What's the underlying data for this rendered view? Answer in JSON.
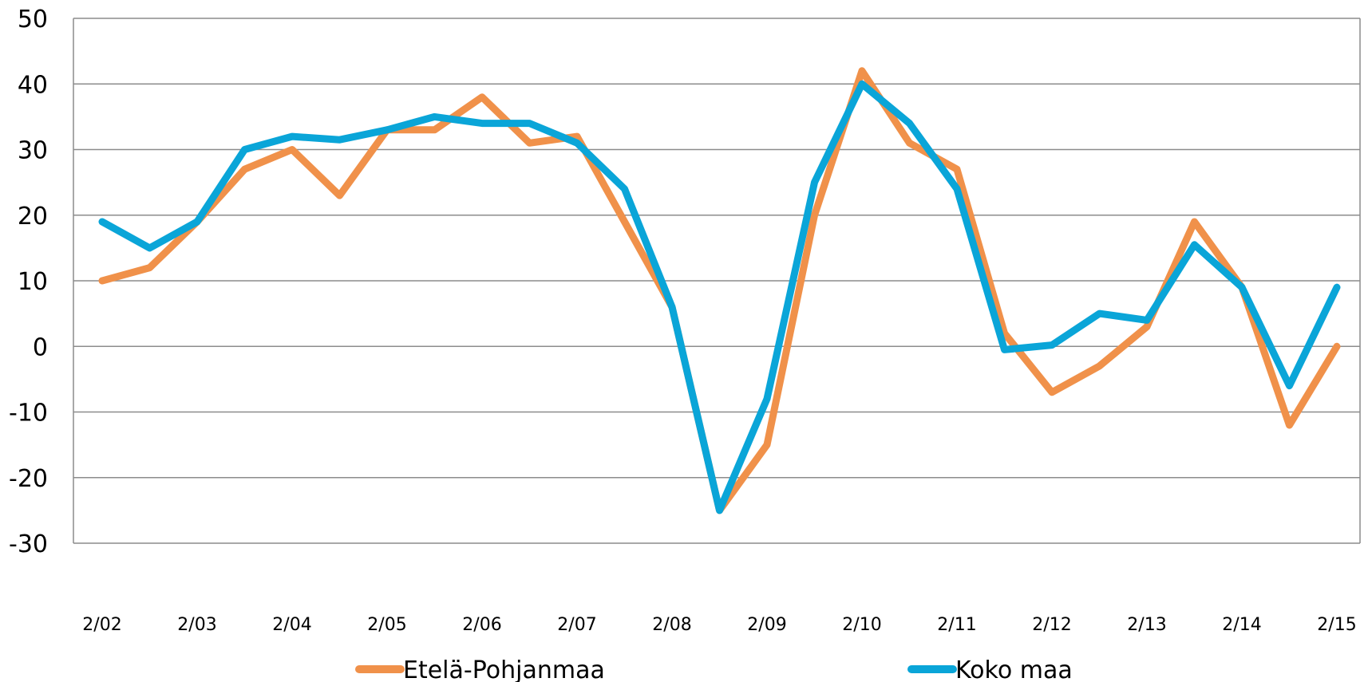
{
  "chart_data": {
    "type": "line",
    "title": "",
    "xlabel": "",
    "ylabel": "",
    "ylim": [
      -30,
      50
    ],
    "y_ticks": [
      50,
      40,
      30,
      20,
      10,
      0,
      -10,
      -20,
      -30
    ],
    "y_tick_labels": [
      "50",
      "40",
      "30",
      "20",
      "10",
      "0",
      "-10",
      "-20",
      "-30"
    ],
    "x_tick_labels": [
      "2/02",
      "2/03",
      "2/04",
      "2/05",
      "2/06",
      "2/07",
      "2/08",
      "2/09",
      "2/10",
      "2/11",
      "2/12",
      "2/13",
      "2/14",
      "2/15"
    ],
    "grid": true,
    "legend_position": "bottom",
    "series": [
      {
        "name": "Etelä-Pohjanmaa",
        "color": "#F0914A",
        "values": [
          10,
          12,
          19,
          27,
          30,
          23,
          33,
          33,
          38,
          31,
          32,
          19,
          6,
          -25,
          -15,
          20,
          42,
          31,
          27,
          2,
          -7,
          -3,
          3,
          19,
          9,
          -12,
          0
        ]
      },
      {
        "name": "Koko maa",
        "color": "#0AA5D8",
        "values": [
          19,
          15,
          19,
          30,
          32,
          31.5,
          33,
          35,
          34,
          34,
          31,
          24,
          6,
          -25,
          -8,
          25,
          40,
          34,
          24,
          -0.5,
          0.2,
          5,
          4,
          15.5,
          9,
          -6,
          9
        ]
      }
    ]
  }
}
